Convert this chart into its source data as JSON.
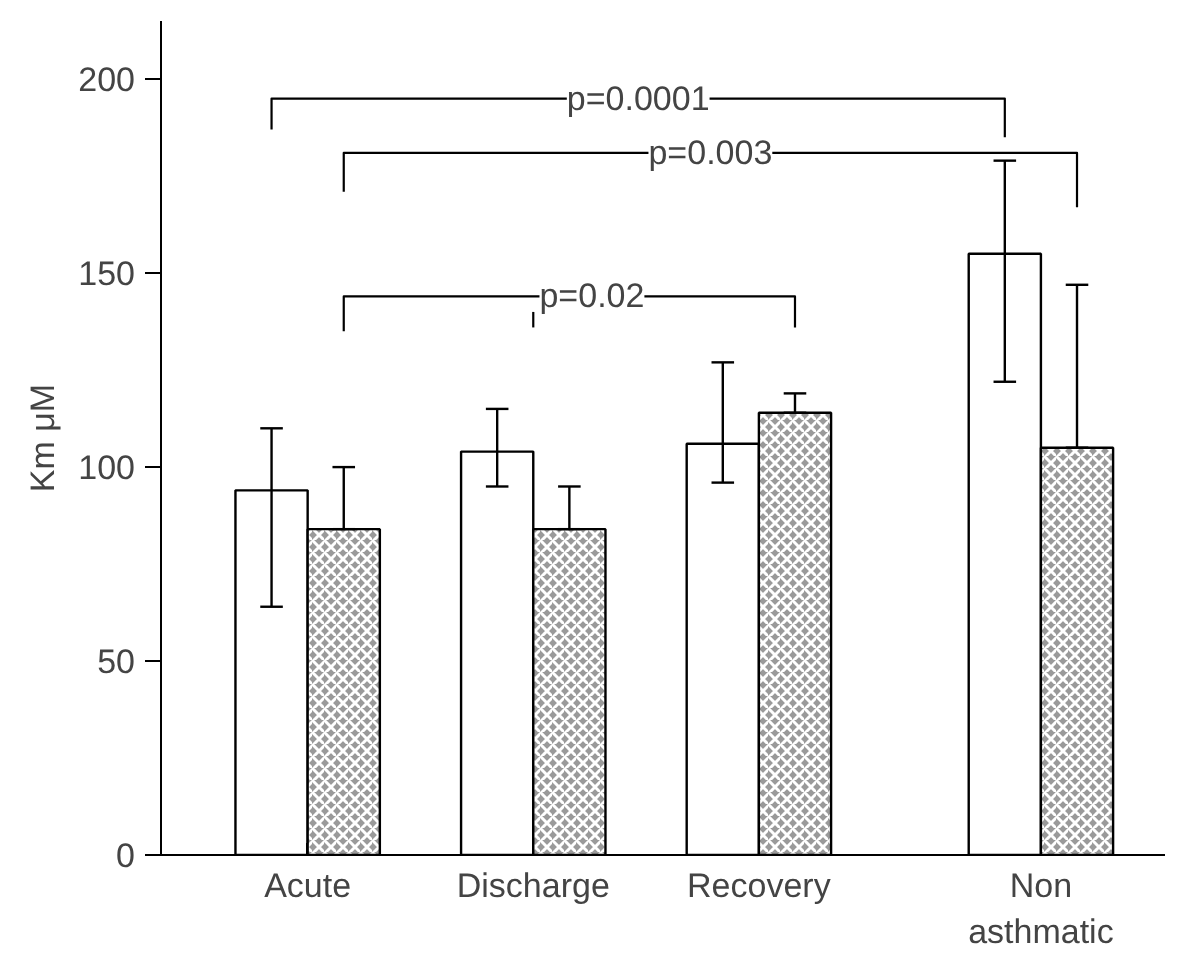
{
  "chart_data": {
    "type": "bar",
    "ylabel": "Km μM",
    "categories": [
      "Acute",
      "Discharge",
      "Recovery",
      "Non\nasthmatic"
    ],
    "series": [
      {
        "color": "#ffffff",
        "values": [
          94,
          104,
          106,
          155
        ],
        "errors": [
          [
            64,
            110
          ],
          [
            95,
            115
          ],
          [
            96,
            127
          ],
          [
            122,
            179
          ]
        ]
      },
      {
        "color": "#9a9a9a",
        "values": [
          84,
          84,
          114,
          105
        ],
        "errors": [
          [
            84,
            100
          ],
          [
            84,
            95
          ],
          [
            114,
            119
          ],
          [
            105,
            147
          ]
        ]
      }
    ],
    "ylim": [
      0,
      215
    ],
    "yticks": [
      0,
      50,
      100,
      150,
      200
    ],
    "grid": false,
    "annotations": [
      "p=0.0001",
      "p=0.003",
      "p=0.02"
    ]
  }
}
